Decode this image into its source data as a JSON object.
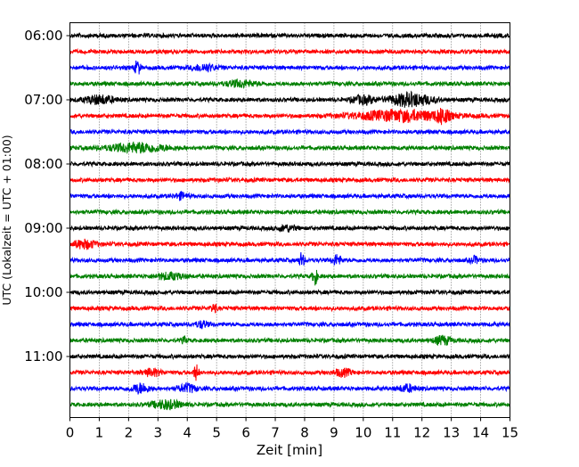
{
  "chart_data": {
    "type": "line",
    "title": "",
    "xlabel": "Zeit  [min]",
    "ylabel": "UTC (Lokalzeit = UTC + 01:00)",
    "xlim": [
      0,
      15
    ],
    "xticks": [
      "0",
      "1",
      "2",
      "3",
      "4",
      "5",
      "6",
      "7",
      "8",
      "9",
      "10",
      "11",
      "12",
      "13",
      "14",
      "15"
    ],
    "yticks": [
      {
        "label": "06:00",
        "trace": 0
      },
      {
        "label": "07:00",
        "trace": 4
      },
      {
        "label": "08:00",
        "trace": 8
      },
      {
        "label": "09:00",
        "trace": 12
      },
      {
        "label": "10:00",
        "trace": 16
      },
      {
        "label": "11:00",
        "trace": 20
      }
    ],
    "grid": "vertical-dotted",
    "trace_minutes": 15,
    "trace_count": 24,
    "colors": [
      "#000000",
      "#ff0000",
      "#0000ff",
      "#008000"
    ],
    "noise_level": 1.0,
    "events": [
      {
        "trace": 2,
        "minute": 2.3,
        "amp": 3.5,
        "dur": 0.1
      },
      {
        "trace": 2,
        "minute": 4.6,
        "amp": 1.6,
        "dur": 0.4
      },
      {
        "trace": 3,
        "minute": 5.8,
        "amp": 1.5,
        "dur": 0.5
      },
      {
        "trace": 4,
        "minute": 1.0,
        "amp": 2.0,
        "dur": 0.5
      },
      {
        "trace": 4,
        "minute": 10.0,
        "amp": 1.8,
        "dur": 0.4
      },
      {
        "trace": 4,
        "minute": 11.6,
        "amp": 3.2,
        "dur": 0.7
      },
      {
        "trace": 5,
        "minute": 11.3,
        "amp": 2.6,
        "dur": 1.6
      },
      {
        "trace": 5,
        "minute": 12.7,
        "amp": 3.0,
        "dur": 0.2
      },
      {
        "trace": 7,
        "minute": 2.3,
        "amp": 2.2,
        "dur": 1.0
      },
      {
        "trace": 10,
        "minute": 3.8,
        "amp": 1.5,
        "dur": 0.2
      },
      {
        "trace": 12,
        "minute": 7.4,
        "amp": 1.4,
        "dur": 0.3
      },
      {
        "trace": 13,
        "minute": 0.5,
        "amp": 2.0,
        "dur": 0.4
      },
      {
        "trace": 14,
        "minute": 7.9,
        "amp": 3.8,
        "dur": 0.08
      },
      {
        "trace": 14,
        "minute": 9.1,
        "amp": 2.5,
        "dur": 0.15
      },
      {
        "trace": 14,
        "minute": 13.8,
        "amp": 1.6,
        "dur": 0.15
      },
      {
        "trace": 15,
        "minute": 8.35,
        "amp": 4.2,
        "dur": 0.08
      },
      {
        "trace": 15,
        "minute": 3.4,
        "amp": 1.5,
        "dur": 0.5
      },
      {
        "trace": 17,
        "minute": 4.9,
        "amp": 2.0,
        "dur": 0.1
      },
      {
        "trace": 18,
        "minute": 4.5,
        "amp": 1.6,
        "dur": 0.2
      },
      {
        "trace": 19,
        "minute": 12.7,
        "amp": 2.0,
        "dur": 0.3
      },
      {
        "trace": 19,
        "minute": 3.9,
        "amp": 1.6,
        "dur": 0.08
      },
      {
        "trace": 21,
        "minute": 4.3,
        "amp": 3.8,
        "dur": 0.08
      },
      {
        "trace": 21,
        "minute": 2.8,
        "amp": 1.6,
        "dur": 0.3
      },
      {
        "trace": 21,
        "minute": 9.3,
        "amp": 1.6,
        "dur": 0.3
      },
      {
        "trace": 22,
        "minute": 2.4,
        "amp": 2.3,
        "dur": 0.3
      },
      {
        "trace": 22,
        "minute": 4.0,
        "amp": 2.0,
        "dur": 0.3
      },
      {
        "trace": 22,
        "minute": 11.5,
        "amp": 1.6,
        "dur": 0.3
      },
      {
        "trace": 23,
        "minute": 3.3,
        "amp": 2.0,
        "dur": 0.5
      }
    ]
  }
}
